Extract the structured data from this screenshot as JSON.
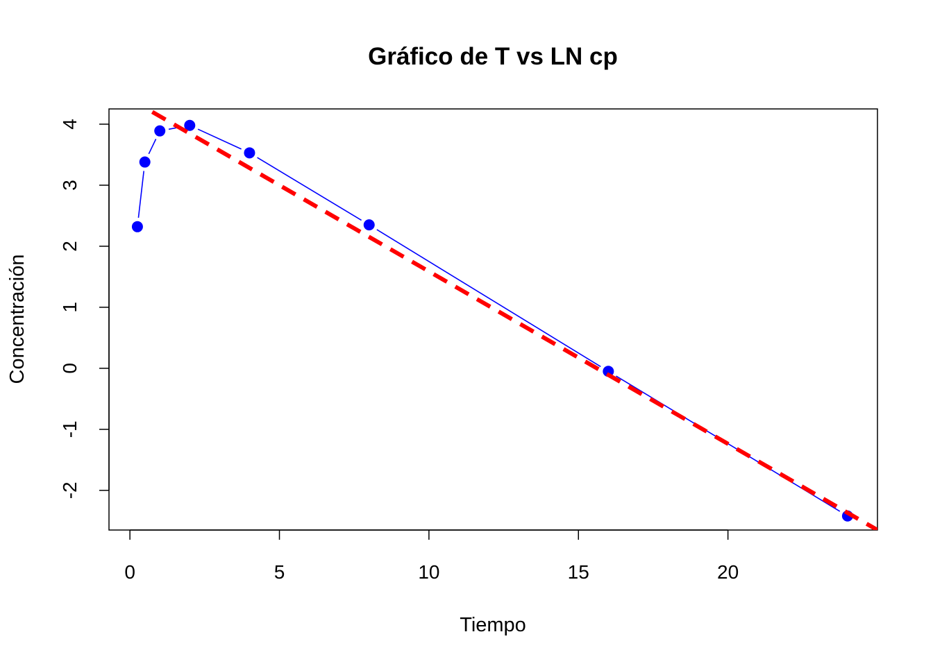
{
  "chart_data": {
    "type": "line",
    "title": "Gráfico de T vs LN cp",
    "xlabel": "Tiempo",
    "ylabel": "Concentración",
    "xlim": [
      -0.7,
      25.0
    ],
    "ylim": [
      -2.65,
      4.25
    ],
    "x_ticks": [
      0,
      5,
      10,
      15,
      20
    ],
    "x_tick_labels": [
      "0",
      "5",
      "10",
      "15",
      "20"
    ],
    "y_ticks": [
      -2,
      -1,
      0,
      1,
      2,
      3,
      4
    ],
    "y_tick_labels": [
      "-2",
      "-1",
      "0",
      "1",
      "2",
      "3",
      "4"
    ],
    "grid": false,
    "series": [
      {
        "style": "points-and-lines",
        "color": "#0000ff",
        "x": [
          0.25,
          0.5,
          1,
          2,
          4,
          8,
          16,
          24
        ],
        "y": [
          2.32,
          3.38,
          3.89,
          3.98,
          3.53,
          2.35,
          -0.05,
          -2.42
        ]
      },
      {
        "style": "dashed-line",
        "color": "#ff0000",
        "x": [
          -0.7,
          25.0
        ],
        "y": [
          4.61,
          -2.65
        ]
      }
    ]
  }
}
